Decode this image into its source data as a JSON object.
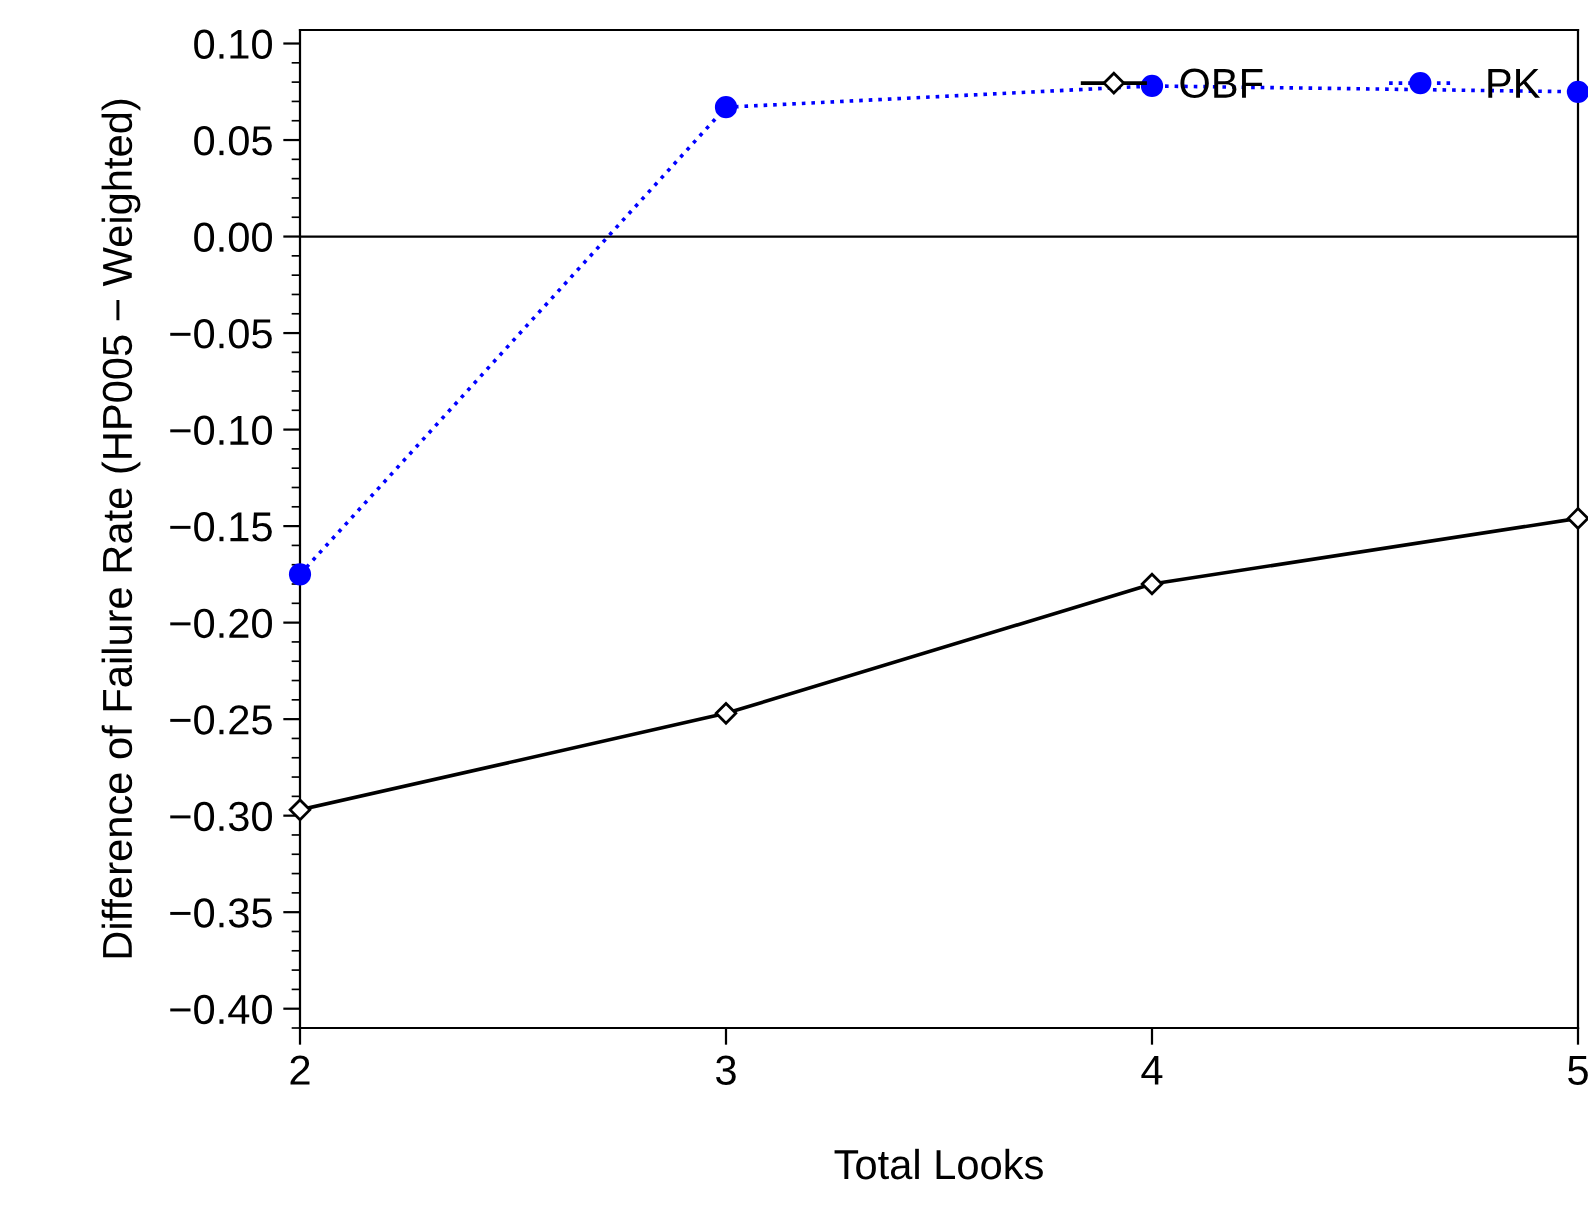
{
  "chart_data": {
    "type": "line",
    "xlabel": "Total Looks",
    "ylabel": "Difference of Failure Rate (HP005 − Weighted)",
    "x": [
      2,
      3,
      4,
      5
    ],
    "xlim": [
      2,
      5
    ],
    "xticks": [
      2,
      3,
      4,
      5
    ],
    "ylim": [
      -0.41,
      0.107
    ],
    "yticks": [
      {
        "value": 0.1,
        "label": "0.10"
      },
      {
        "value": 0.05,
        "label": "0.05"
      },
      {
        "value": 0,
        "label": "0.00"
      },
      {
        "value": -0.05,
        "label": "−0.05"
      },
      {
        "value": -0.1,
        "label": "−0.10"
      },
      {
        "value": -0.15,
        "label": "−0.15"
      },
      {
        "value": -0.2,
        "label": "−0.20"
      },
      {
        "value": -0.25,
        "label": "−0.25"
      },
      {
        "value": -0.3,
        "label": "−0.30"
      },
      {
        "value": -0.35,
        "label": "−0.35"
      },
      {
        "value": -0.4,
        "label": "−0.40"
      }
    ],
    "ref_lines": [
      {
        "axis": "y",
        "value": 0,
        "color": "#000000",
        "line_style": "solid"
      }
    ],
    "legend": "top right",
    "grid": false,
    "series": [
      {
        "name": "OBF",
        "color": "#000000",
        "values": [
          -0.297,
          -0.247,
          -0.18,
          -0.146
        ],
        "marker": "diamond",
        "line_style": "solid"
      },
      {
        "name": "PK",
        "color": "#0000ff",
        "values": [
          -0.175,
          0.067,
          0.078,
          0.075
        ],
        "marker": "circle",
        "line_style": "dotted"
      }
    ]
  }
}
